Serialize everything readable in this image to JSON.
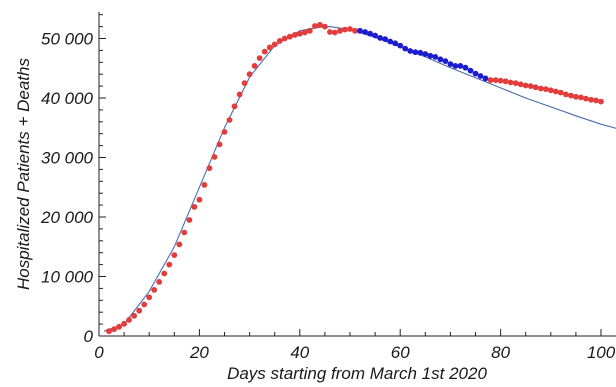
{
  "chart_data": {
    "type": "scatter",
    "title": "",
    "xlabel": "Days starting from March 1st 2020",
    "ylabel": "Hospitalized Patients + Deaths",
    "xlim": [
      0,
      103
    ],
    "ylim": [
      0,
      54000
    ],
    "grid": false,
    "x_ticks": [
      0,
      20,
      40,
      60,
      80,
      100
    ],
    "x_tick_labels": [
      "0",
      "20",
      "40",
      "60",
      "80",
      "100"
    ],
    "y_ticks": [
      0,
      10000,
      20000,
      30000,
      40000,
      50000
    ],
    "y_tick_labels": [
      "0",
      "10 000",
      "20 000",
      "30 000",
      "40 000",
      "50 000"
    ],
    "series": [
      {
        "color": "#e23c3c",
        "marker": "circle",
        "x": [
          2,
          3,
          4,
          5,
          6,
          7,
          8,
          9,
          10,
          11,
          12,
          13,
          14,
          15,
          16,
          17,
          18,
          19,
          20,
          21,
          22,
          23,
          24,
          25,
          26,
          27,
          28,
          29,
          30,
          31,
          32,
          33,
          34,
          35,
          36,
          37,
          38,
          39,
          40,
          41,
          42,
          43,
          44,
          45,
          46,
          47,
          48,
          49,
          50,
          51
        ],
        "y": [
          800,
          1150,
          1550,
          2050,
          2700,
          3400,
          4250,
          5300,
          6500,
          7750,
          9100,
          10500,
          12000,
          13600,
          15400,
          17400,
          19500,
          21700,
          22900,
          25400,
          28200,
          30100,
          32200,
          34300,
          36300,
          38600,
          40600,
          42500,
          44000,
          45400,
          46700,
          47800,
          48500,
          49000,
          49600,
          50000,
          50300,
          50600,
          50800,
          51000,
          51300,
          52100,
          52300,
          52000,
          51100,
          51000,
          51300,
          51500,
          51600,
          51300
        ]
      },
      {
        "color": "#1c1ccf",
        "marker": "circle",
        "x": [
          52,
          53,
          54,
          55,
          56,
          57,
          58,
          59,
          60,
          61,
          62,
          63,
          64,
          65,
          66,
          67,
          68,
          69,
          70,
          71,
          72,
          73,
          74,
          75,
          76,
          77
        ],
        "y": [
          51300,
          51100,
          50800,
          50500,
          50100,
          49900,
          49500,
          49200,
          48800,
          48300,
          47900,
          47700,
          47600,
          47400,
          47100,
          46900,
          46500,
          46200,
          45700,
          45400,
          45400,
          45100,
          44600,
          44100,
          43700,
          43300
        ]
      },
      {
        "color": "#e23c3c",
        "marker": "circle",
        "x": [
          78,
          79,
          80,
          81,
          82,
          83,
          84,
          85,
          86,
          87,
          88,
          89,
          90,
          91,
          92,
          93,
          94,
          95,
          96,
          97,
          98,
          99,
          100
        ],
        "y": [
          43000,
          43000,
          42900,
          42800,
          42600,
          42500,
          42300,
          42100,
          42000,
          41800,
          41600,
          41500,
          41300,
          41100,
          40900,
          40600,
          40400,
          40200,
          40100,
          39900,
          39700,
          39600,
          39400
        ]
      },
      {
        "type": "line",
        "color": "#4a6db0",
        "x": [
          1,
          5,
          10,
          15,
          20,
          25,
          30,
          35,
          40,
          44,
          46,
          50,
          55,
          60,
          65,
          70,
          75,
          80,
          85,
          90,
          95,
          100,
          103
        ],
        "y": [
          800,
          2000,
          7500,
          15000,
          25000,
          35000,
          43500,
          48800,
          51300,
          51900,
          52000,
          51500,
          50200,
          48600,
          46900,
          45100,
          43400,
          41700,
          40000,
          38500,
          37000,
          35600,
          34900
        ]
      }
    ]
  }
}
